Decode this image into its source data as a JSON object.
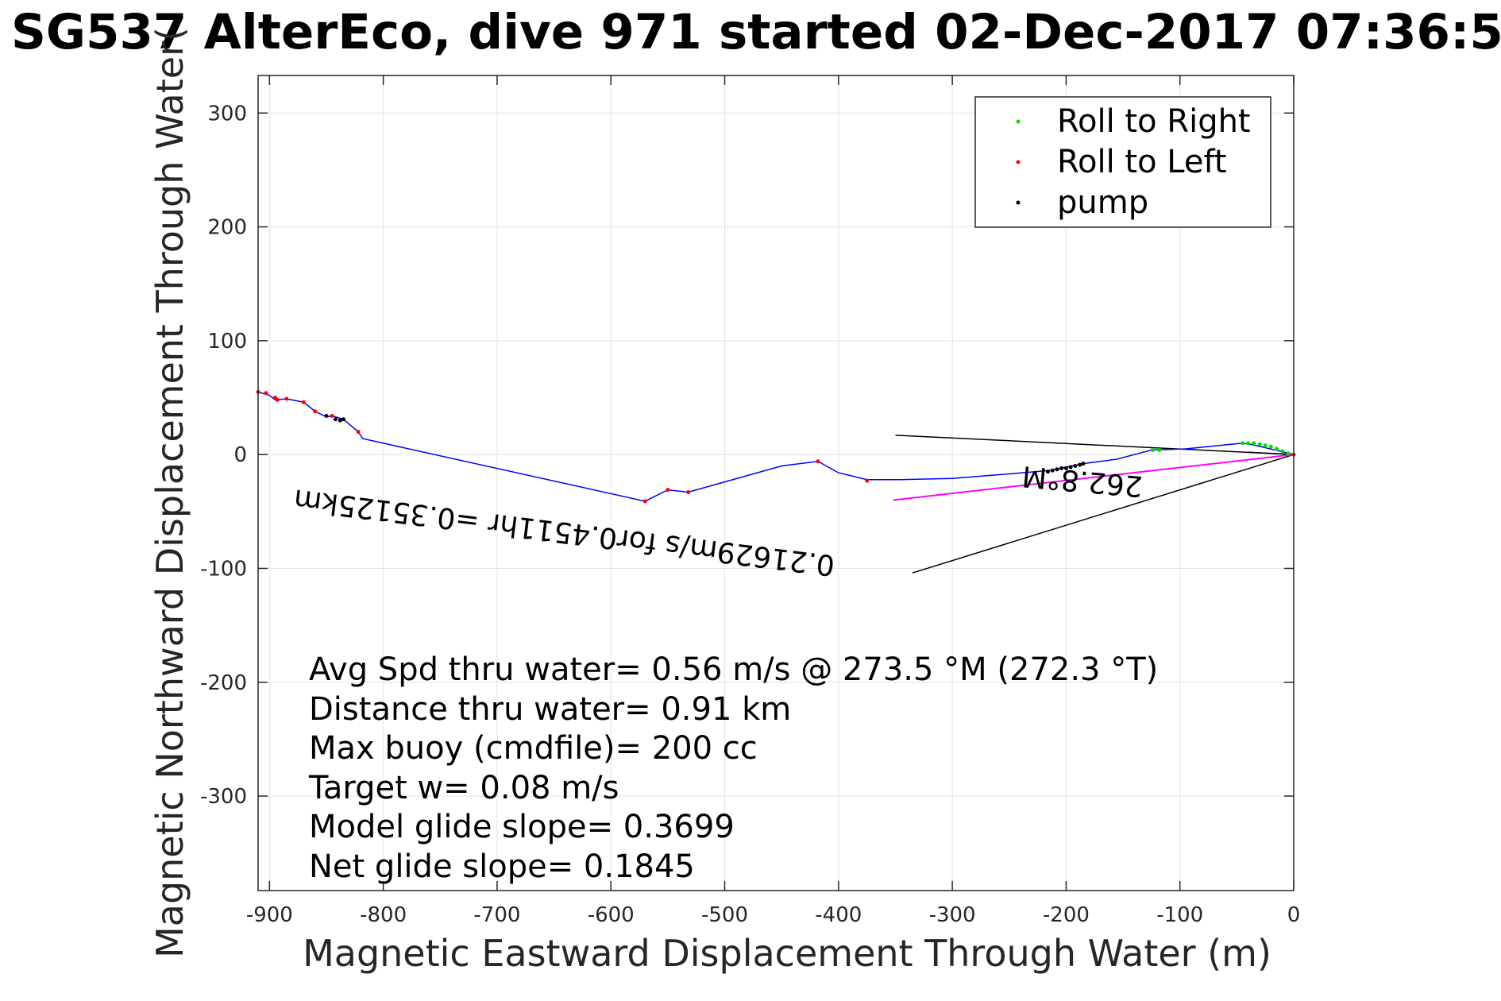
{
  "title": "SG537 AlterEco, dive 971 started 02-Dec-2017 07:36:5",
  "chart_data": {
    "type": "line",
    "xlabel": "Magnetic Eastward Displacement Through Water (m)",
    "ylabel": "Magnetic Northward Displacement Through Water(",
    "xlim": [
      -910,
      0
    ],
    "ylim": [
      -383,
      333
    ],
    "xticks": [
      -900,
      -800,
      -700,
      -600,
      -500,
      -400,
      -300,
      -200,
      -100,
      0
    ],
    "yticks": [
      300,
      200,
      100,
      0,
      -100,
      -200,
      -300
    ],
    "grid": true,
    "legend_position": "top-right",
    "legend": [
      {
        "label": "Roll to Right",
        "color": "#00dd00"
      },
      {
        "label": "Roll to Left",
        "color": "#ff0000"
      },
      {
        "label": "pump",
        "color": "#000000"
      }
    ],
    "track": {
      "color": "#0000ff",
      "x": [
        0,
        -12,
        -25,
        -38,
        -45,
        -55,
        -75,
        -95,
        -125,
        -155,
        -185,
        -215,
        -250,
        -300,
        -345,
        -375,
        -400,
        -418,
        -450,
        -532,
        -550,
        -570,
        -818,
        -822,
        -835,
        -845,
        -850,
        -860,
        -870,
        -885,
        -895,
        -900,
        -910
      ],
      "y": [
        0,
        3,
        6,
        9,
        10,
        9,
        7,
        5,
        4,
        -4,
        -8,
        -14,
        -17,
        -21,
        -22,
        -22,
        -16,
        -6,
        -10,
        -33,
        -31,
        -41,
        14,
        20,
        31,
        34,
        33,
        38,
        46,
        49,
        48,
        52,
        55
      ]
    },
    "roll_right_points": {
      "x": [
        -5,
        -10,
        -15,
        -20,
        -25,
        -30,
        -35,
        -40,
        -45,
        -118,
        -124
      ],
      "y": [
        1,
        3,
        5,
        7,
        8,
        9,
        10,
        10,
        10,
        4,
        4
      ]
    },
    "roll_left_points": {
      "x": [
        0,
        -375,
        -418,
        -532,
        -550,
        -570,
        -822,
        -845,
        -860,
        -870,
        -885,
        -893,
        -895,
        -903,
        -910
      ],
      "y": [
        0,
        -23,
        -6,
        -33,
        -31,
        -41,
        20,
        34,
        38,
        46,
        49,
        48,
        50,
        54,
        55
      ]
    },
    "pump_points": {
      "x": [
        -185,
        -188,
        -192,
        -196,
        -200,
        -204,
        -208,
        -212,
        -216,
        -835,
        -838,
        -842,
        -850
      ],
      "y": [
        -8,
        -9,
        -10,
        -11,
        -12,
        -12,
        -13,
        -14,
        -15,
        31,
        30,
        31,
        34
      ]
    },
    "current_arrow": {
      "color": "#ff00ff",
      "x": [
        0,
        -352
      ],
      "y": [
        0,
        -40
      ]
    },
    "black_lines": [
      {
        "x": [
          0,
          -350
        ],
        "y": [
          0,
          17
        ]
      },
      {
        "x": [
          0,
          -335
        ],
        "y": [
          0,
          -104
        ]
      },
      {
        "x": [
          0,
          -40
        ],
        "y": [
          0,
          2
        ]
      }
    ],
    "annotations": [
      {
        "text": "0.21629m/s for0.4511hr =0.35125km",
        "x": -640,
        "y": -60,
        "rotation_deg": 187
      },
      {
        "text": "262.8°M",
        "x": -185,
        "y": -15,
        "rotation_deg": 185
      }
    ],
    "stats": [
      "Avg Spd thru water=  0.56 m/s @ 273.5 °M (272.3 °T)",
      "Distance thru water=  0.91 km",
      "Max buoy (cmdfile)= 200 cc",
      "Target w= 0.08 m/s",
      "Model glide slope= 0.3699",
      "Net glide slope= 0.1845"
    ]
  }
}
